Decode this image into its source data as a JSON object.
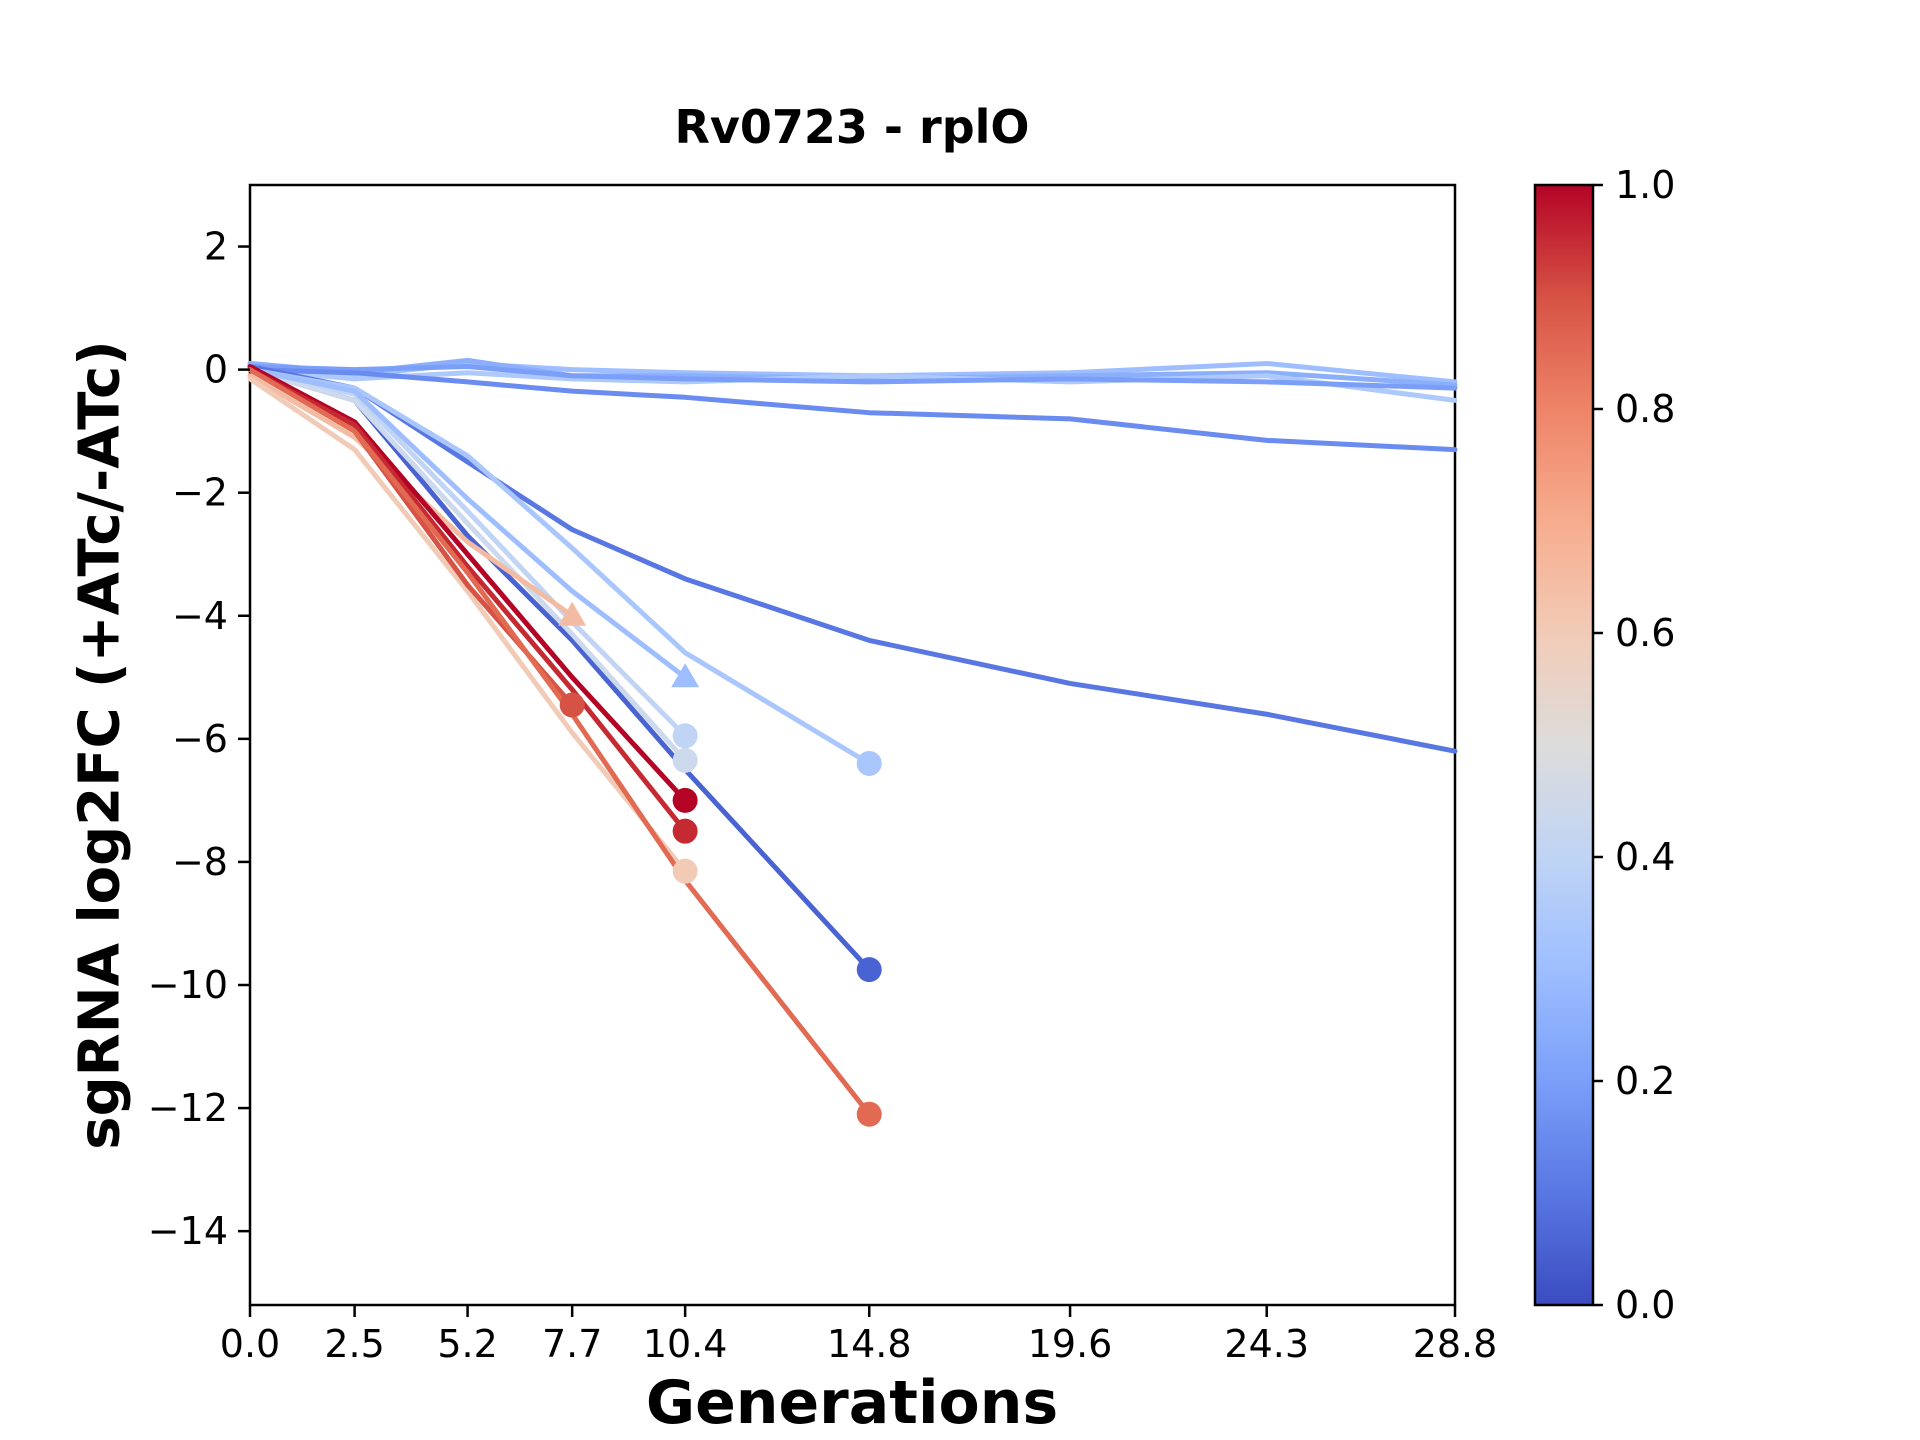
{
  "chart_data": {
    "type": "line",
    "title": "Rv0723 - rplO",
    "xlabel": "Generations",
    "ylabel": "sgRNA log2FC (+ATc/-ATc)",
    "xlim": [
      0,
      28.8
    ],
    "ylim": [
      -15.2,
      3.0
    ],
    "grid": false,
    "legend": "colorbar-right",
    "xticks": {
      "values": [
        0.0,
        2.5,
        5.2,
        7.7,
        10.4,
        14.8,
        19.6,
        24.3,
        28.8
      ],
      "labels": [
        "0.0",
        "2.5",
        "5.2",
        "7.7",
        "10.4",
        "14.8",
        "19.6",
        "24.3",
        "28.8"
      ]
    },
    "yticks": {
      "values": [
        2,
        0,
        -2,
        -4,
        -6,
        -8,
        -10,
        -12,
        -14
      ],
      "labels": [
        "2",
        "0",
        "−2",
        "−4",
        "−6",
        "−8",
        "−10",
        "−12",
        "−14"
      ]
    },
    "colorbar": {
      "range": [
        0.0,
        1.0
      ],
      "ticks": {
        "values": [
          1.0,
          0.8,
          0.6,
          0.4,
          0.2,
          0.0
        ],
        "labels": [
          "1.0",
          "0.8",
          "0.6",
          "0.4",
          "0.2",
          "0.0"
        ]
      },
      "stops": [
        {
          "v": 1.0,
          "color": "#b40426"
        },
        {
          "v": 0.9,
          "color": "#d65244"
        },
        {
          "v": 0.8,
          "color": "#ee8468"
        },
        {
          "v": 0.7,
          "color": "#f7ac8e"
        },
        {
          "v": 0.6,
          "color": "#f2cbb7"
        },
        {
          "v": 0.5,
          "color": "#dddcdb"
        },
        {
          "v": 0.4,
          "color": "#c0d4f5"
        },
        {
          "v": 0.3,
          "color": "#9ebeff"
        },
        {
          "v": 0.2,
          "color": "#7b9ff9"
        },
        {
          "v": 0.1,
          "color": "#5977e3"
        },
        {
          "v": 0.0,
          "color": "#3b4cc0"
        }
      ]
    },
    "series": [
      {
        "c": 0.3,
        "color": "#9ebeff",
        "marker": "none",
        "x": [
          0,
          2.5,
          5.2,
          7.7,
          10.4,
          14.8,
          19.6,
          24.3,
          28.8
        ],
        "y": [
          0.05,
          -0.1,
          0.1,
          0.0,
          -0.05,
          -0.1,
          -0.05,
          0.1,
          -0.2
        ]
      },
      {
        "c": 0.25,
        "color": "#8caffc",
        "marker": "none",
        "x": [
          0,
          2.5,
          5.2,
          7.7,
          10.4,
          14.8,
          19.6,
          24.3,
          28.8
        ],
        "y": [
          0.1,
          -0.05,
          0.15,
          -0.1,
          -0.1,
          -0.15,
          -0.1,
          -0.05,
          -0.25
        ]
      },
      {
        "c": 0.35,
        "color": "#aec9fc",
        "marker": "none",
        "x": [
          0,
          2.5,
          5.2,
          7.7,
          10.4,
          14.8,
          19.6,
          24.3,
          28.8
        ],
        "y": [
          0.0,
          -0.15,
          -0.05,
          -0.15,
          -0.2,
          -0.1,
          -0.2,
          -0.1,
          -0.5
        ]
      },
      {
        "c": 0.2,
        "color": "#7b9ff9",
        "marker": "none",
        "x": [
          0,
          2.5,
          5.2,
          7.7,
          10.4,
          14.8,
          19.6,
          24.3,
          28.8
        ],
        "y": [
          0.05,
          0.0,
          0.05,
          -0.1,
          -0.15,
          -0.2,
          -0.15,
          -0.2,
          -0.3
        ]
      },
      {
        "c": 0.15,
        "color": "#6a8bef",
        "marker": "none",
        "x": [
          0,
          2.5,
          5.2,
          7.7,
          10.4,
          14.8,
          19.6,
          24.3,
          28.8
        ],
        "y": [
          0.0,
          -0.05,
          -0.2,
          -0.35,
          -0.45,
          -0.7,
          -0.8,
          -1.15,
          -1.3
        ]
      },
      {
        "c": 0.1,
        "color": "#5977e3",
        "marker": "none",
        "x": [
          0,
          2.5,
          5.2,
          7.7,
          10.4,
          14.8,
          19.6,
          24.3,
          28.8
        ],
        "y": [
          0.05,
          -0.3,
          -1.5,
          -2.6,
          -3.4,
          -4.4,
          -5.1,
          -5.6,
          -6.2
        ]
      },
      {
        "c": 0.05,
        "color": "#4a63d3",
        "marker": "circle",
        "x": [
          0,
          2.5,
          5.2,
          7.7,
          10.4,
          14.8
        ],
        "y": [
          0.0,
          -0.5,
          -2.7,
          -4.4,
          -6.5,
          -9.75
        ]
      },
      {
        "c": 0.35,
        "color": "#a9c6fd",
        "marker": "circle",
        "x": [
          0,
          2.5,
          5.2,
          7.7,
          10.4,
          14.8
        ],
        "y": [
          0.0,
          -0.3,
          -1.4,
          -2.9,
          -4.6,
          -6.4
        ]
      },
      {
        "c": 0.4,
        "color": "#c0d4f5",
        "marker": "circle",
        "x": [
          0,
          2.5,
          5.2,
          7.7,
          10.4
        ],
        "y": [
          0.0,
          -0.4,
          -2.3,
          -4.1,
          -5.95
        ]
      },
      {
        "c": 0.45,
        "color": "#cdd9ec",
        "marker": "circle",
        "x": [
          0,
          2.5,
          5.2,
          7.7,
          10.4
        ],
        "y": [
          0.0,
          -0.5,
          -2.5,
          -4.3,
          -6.35
        ]
      },
      {
        "c": 0.3,
        "color": "#9ebeff",
        "marker": "triangle",
        "x": [
          0,
          2.5,
          5.2,
          7.7,
          10.4
        ],
        "y": [
          0.0,
          -0.35,
          -2.1,
          -3.6,
          -5.0
        ]
      },
      {
        "c": 0.65,
        "color": "#f4bba3",
        "marker": "triangle",
        "x": [
          0,
          2.5,
          5.2,
          7.7
        ],
        "y": [
          -0.1,
          -1.1,
          -2.8,
          -4.0
        ]
      },
      {
        "c": 0.6,
        "color": "#f2cbb7",
        "marker": "circle",
        "x": [
          0,
          2.5,
          5.2,
          7.7,
          10.4
        ],
        "y": [
          -0.15,
          -1.3,
          -3.6,
          -5.9,
          -8.15
        ]
      },
      {
        "c": 0.9,
        "color": "#d65244",
        "marker": "circle",
        "x": [
          0,
          2.5,
          5.2,
          7.7
        ],
        "y": [
          0.0,
          -1.0,
          -3.5,
          -5.45
        ]
      },
      {
        "c": 1.0,
        "color": "#b40426",
        "marker": "circle",
        "x": [
          0,
          2.5,
          5.2,
          7.7,
          10.4
        ],
        "y": [
          0.05,
          -0.85,
          -3.0,
          -5.0,
          -7.0
        ]
      },
      {
        "c": 0.95,
        "color": "#c52a32",
        "marker": "circle",
        "x": [
          0,
          2.5,
          5.2,
          7.7,
          10.4
        ],
        "y": [
          0.0,
          -0.9,
          -3.2,
          -5.2,
          -7.5
        ]
      },
      {
        "c": 0.85,
        "color": "#e26952",
        "marker": "circle",
        "x": [
          0,
          2.5,
          5.2,
          7.7,
          10.4,
          14.8
        ],
        "y": [
          0.0,
          -1.0,
          -3.3,
          -5.6,
          -8.3,
          -12.1
        ]
      }
    ]
  }
}
